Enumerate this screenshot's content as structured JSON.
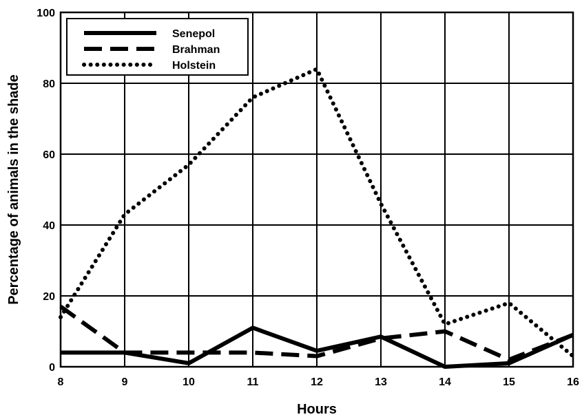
{
  "chart_data": {
    "type": "line",
    "xlabel": "Hours",
    "ylabel": "Percentage of animals in the shade",
    "x": [
      8,
      9,
      10,
      11,
      12,
      13,
      14,
      15,
      16
    ],
    "xlim": [
      8,
      16
    ],
    "ylim": [
      0,
      100
    ],
    "xticks": [
      "8",
      "9",
      "10",
      "11",
      "12",
      "13",
      "14",
      "15",
      "16"
    ],
    "yticks": [
      "0",
      "20",
      "40",
      "60",
      "80",
      "100"
    ],
    "grid": true,
    "legend_position": "top-left",
    "series": [
      {
        "name": "Senepol",
        "style": "solid",
        "color": "#000000",
        "values": [
          4,
          4,
          1,
          11,
          4.5,
          8.5,
          0,
          1,
          9
        ]
      },
      {
        "name": "Brahman",
        "style": "dashed",
        "color": "#000000",
        "values": [
          17,
          4,
          4,
          4,
          3,
          8,
          10,
          2,
          9
        ]
      },
      {
        "name": "Holstein",
        "style": "dotted",
        "color": "#000000",
        "values": [
          14,
          43,
          57,
          76,
          84,
          46,
          12,
          18,
          3
        ]
      }
    ]
  }
}
